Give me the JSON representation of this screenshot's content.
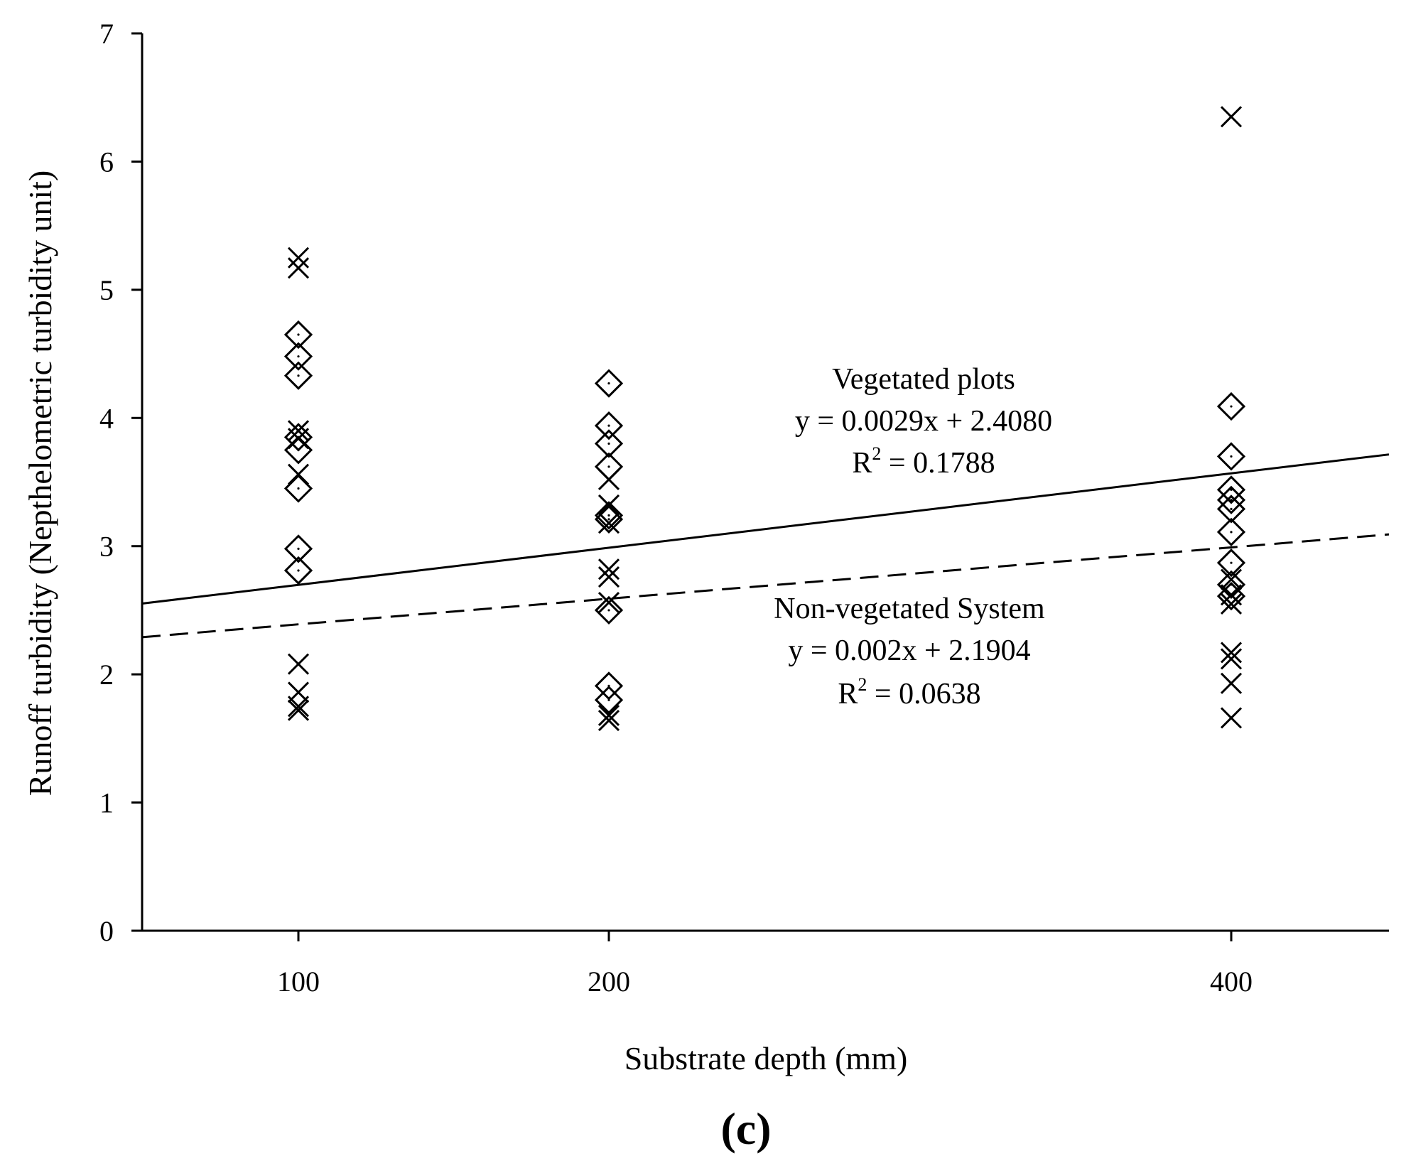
{
  "chart_data": {
    "type": "scatter",
    "panel_label": "(c)",
    "xlabel": "Substrate depth (mm)",
    "ylabel": "Runoff turbidity (Nepthelometric turbidity unit)",
    "x_categories": [
      100,
      200,
      400
    ],
    "y_ticks": [
      0,
      1,
      2,
      3,
      4,
      5,
      6,
      7
    ],
    "ylim": [
      0,
      7
    ],
    "series": [
      {
        "name": "Vegetated plots",
        "marker": "diamond",
        "points": [
          {
            "x": 100,
            "y": 4.65
          },
          {
            "x": 100,
            "y": 4.48
          },
          {
            "x": 100,
            "y": 4.33
          },
          {
            "x": 100,
            "y": 3.85
          },
          {
            "x": 100,
            "y": 3.75
          },
          {
            "x": 100,
            "y": 3.45
          },
          {
            "x": 100,
            "y": 2.98
          },
          {
            "x": 100,
            "y": 2.81
          },
          {
            "x": 200,
            "y": 4.27
          },
          {
            "x": 200,
            "y": 3.94
          },
          {
            "x": 200,
            "y": 3.8
          },
          {
            "x": 200,
            "y": 3.62
          },
          {
            "x": 200,
            "y": 3.24
          },
          {
            "x": 200,
            "y": 3.21
          },
          {
            "x": 200,
            "y": 2.5
          },
          {
            "x": 200,
            "y": 1.91
          },
          {
            "x": 200,
            "y": 1.8
          },
          {
            "x": 400,
            "y": 4.09
          },
          {
            "x": 400,
            "y": 3.7
          },
          {
            "x": 400,
            "y": 3.44
          },
          {
            "x": 400,
            "y": 3.36
          },
          {
            "x": 400,
            "y": 3.29
          },
          {
            "x": 400,
            "y": 3.11
          },
          {
            "x": 400,
            "y": 2.87
          },
          {
            "x": 400,
            "y": 2.7
          },
          {
            "x": 400,
            "y": 2.61
          }
        ],
        "trendline": {
          "slope": 0.0029,
          "intercept": 2.408,
          "style": "solid"
        },
        "equation": "y = 0.0029x + 2.4080",
        "r2_label": "R",
        "r2_sup": "2",
        "r2_value": " = 0.1788"
      },
      {
        "name": "Non-vegetated System",
        "marker": "x",
        "points": [
          {
            "x": 100,
            "y": 5.25
          },
          {
            "x": 100,
            "y": 5.17
          },
          {
            "x": 100,
            "y": 3.9
          },
          {
            "x": 100,
            "y": 3.84
          },
          {
            "x": 100,
            "y": 3.56
          },
          {
            "x": 100,
            "y": 2.08
          },
          {
            "x": 100,
            "y": 1.86
          },
          {
            "x": 100,
            "y": 1.75
          },
          {
            "x": 100,
            "y": 1.72
          },
          {
            "x": 200,
            "y": 3.52
          },
          {
            "x": 200,
            "y": 3.32
          },
          {
            "x": 200,
            "y": 3.18
          },
          {
            "x": 200,
            "y": 2.82
          },
          {
            "x": 200,
            "y": 2.76
          },
          {
            "x": 200,
            "y": 2.56
          },
          {
            "x": 200,
            "y": 1.68
          },
          {
            "x": 200,
            "y": 1.64
          },
          {
            "x": 400,
            "y": 6.35
          },
          {
            "x": 400,
            "y": 2.74
          },
          {
            "x": 400,
            "y": 2.62
          },
          {
            "x": 400,
            "y": 2.55
          },
          {
            "x": 400,
            "y": 2.17
          },
          {
            "x": 400,
            "y": 2.12
          },
          {
            "x": 400,
            "y": 1.93
          },
          {
            "x": 400,
            "y": 1.66
          }
        ],
        "trendline": {
          "slope": 0.002,
          "intercept": 2.1904,
          "style": "dashed"
        },
        "equation": "y = 0.002x + 2.1904",
        "r2_label": "R",
        "r2_sup": "2",
        "r2_value": " = 0.0638"
      }
    ]
  }
}
